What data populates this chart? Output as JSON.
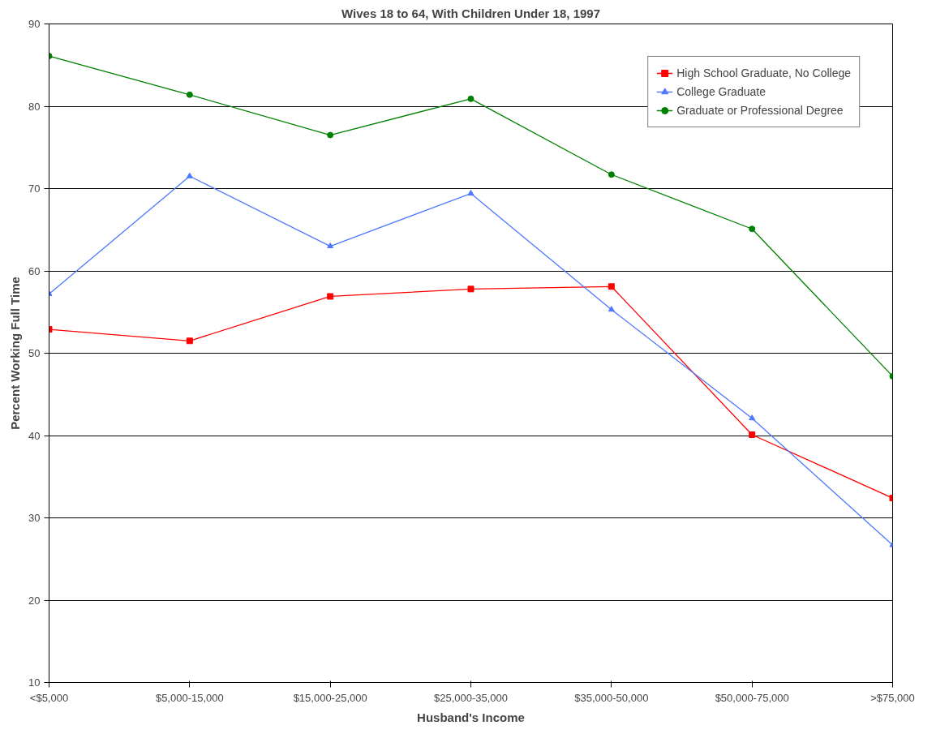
{
  "chart_data": {
    "type": "line",
    "title": "Wives 18 to 64, With Children Under 18, 1997",
    "xlabel": "Husband's Income",
    "ylabel": "Percent Working Full Time",
    "categories": [
      "<$5,000",
      "$5,000-15,000",
      "$15,000-25,000",
      "$25,000-35,000",
      "$35,000-50,000",
      "$50,000-75,000",
      ">$75,000"
    ],
    "series": [
      {
        "name": "High School Graduate, No College",
        "color": "#ff0000",
        "marker": "square",
        "values": [
          52.9,
          51.5,
          56.9,
          57.8,
          58.1,
          40.1,
          32.4
        ]
      },
      {
        "name": "College Graduate",
        "color": "#4d79ff",
        "marker": "triangle",
        "values": [
          57.2,
          71.5,
          63.0,
          69.4,
          55.3,
          42.1,
          26.7
        ]
      },
      {
        "name": "Graduate or Professional Degree",
        "color": "#008000",
        "marker": "circle",
        "values": [
          86.1,
          81.4,
          76.5,
          80.9,
          71.7,
          65.1,
          47.2
        ]
      }
    ],
    "ylim": [
      10,
      90
    ],
    "yticks": [
      10,
      20,
      30,
      40,
      50,
      60,
      70,
      80,
      90
    ],
    "grid": "y",
    "legend": "top right",
    "line_style": "solid"
  }
}
